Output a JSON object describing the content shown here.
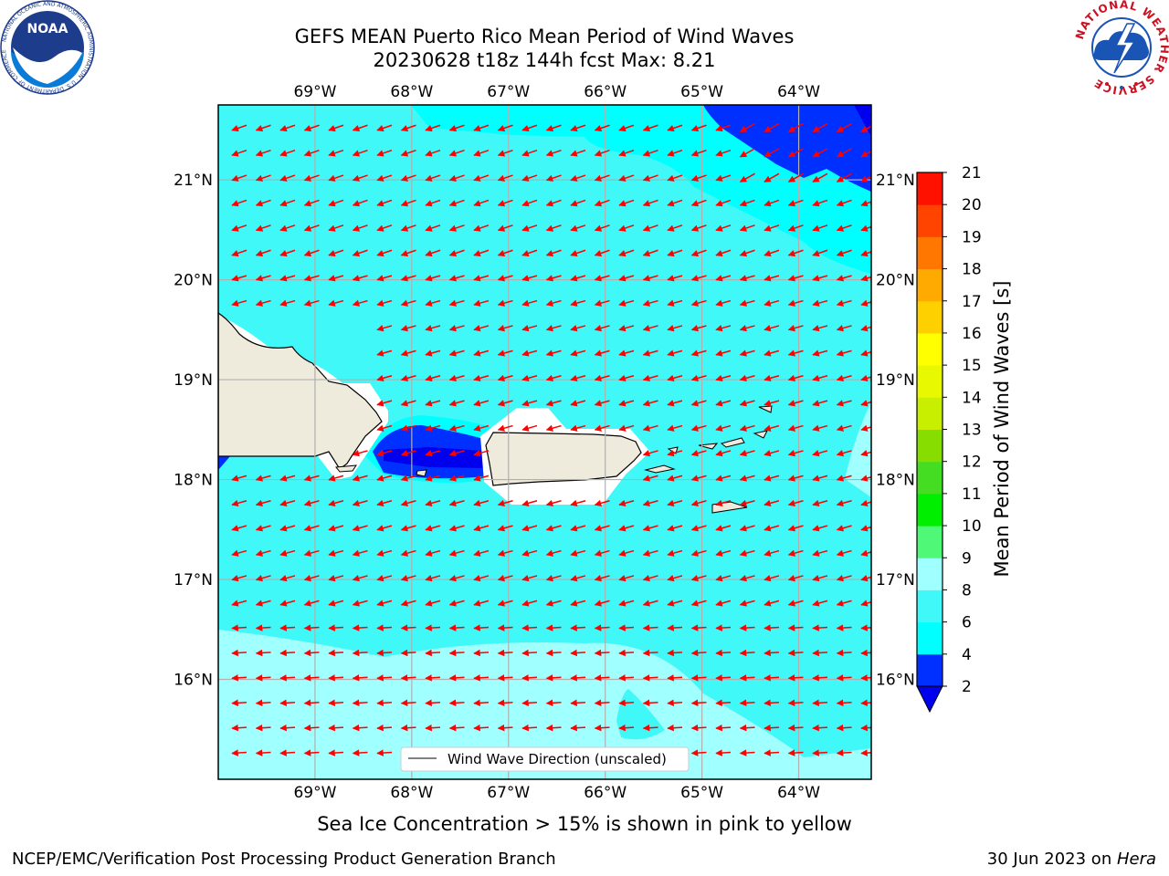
{
  "title": {
    "line1": "GEFS MEAN Puerto Rico Mean Period of Wind Waves",
    "line2": "20230628 t18z 144h fcst   Max: 8.21"
  },
  "map": {
    "lon_range": [
      -70.0,
      -63.25
    ],
    "lat_range": [
      15.0,
      21.75
    ],
    "lon_ticks": [
      "69°W",
      "68°W",
      "67°W",
      "66°W",
      "65°W",
      "64°W"
    ],
    "lat_ticks": [
      "21°N",
      "20°N",
      "19°N",
      "18°N",
      "17°N",
      "16°N"
    ],
    "legend_label": "Wind Wave Direction (unscaled)",
    "arrow_color": "#ff0000",
    "land_color": "#eeeadc"
  },
  "colorbar": {
    "label": "Mean Period of Wind Waves [s]",
    "ticks": [
      "2",
      "4",
      "6",
      "8",
      "9",
      "10",
      "11",
      "12",
      "13",
      "14",
      "15",
      "16",
      "17",
      "18",
      "19",
      "20",
      "21"
    ],
    "colors": [
      "#0030ff",
      "#00ffff",
      "#40f8f8",
      "#a0ffff",
      "#50f878",
      "#00ee00",
      "#44dd22",
      "#88dd00",
      "#c8ee00",
      "#e8f800",
      "#ffff00",
      "#ffd000",
      "#ffaa00",
      "#ff7700",
      "#ff4400",
      "#ff1100"
    ],
    "under_color": "#0000ee"
  },
  "footer": {
    "ice_note": "Sea Ice Concentration > 15% is shown in pink to yellow",
    "credit": "NCEP/EMC/Verification Post Processing Product Generation Branch",
    "date": "30 Jun 2023 on ",
    "machine": "Hera"
  },
  "logos": {
    "left": "noaa-logo",
    "left_text": "NOAA",
    "left_ring": "NATIONAL OCEANIC AND ATMOSPHERIC ADMINISTRATION · U.S. DEPARTMENT OF COMMERCE",
    "right": "national-weather-service-logo",
    "right_ring": "NATIONAL WEATHER SERVICE"
  }
}
